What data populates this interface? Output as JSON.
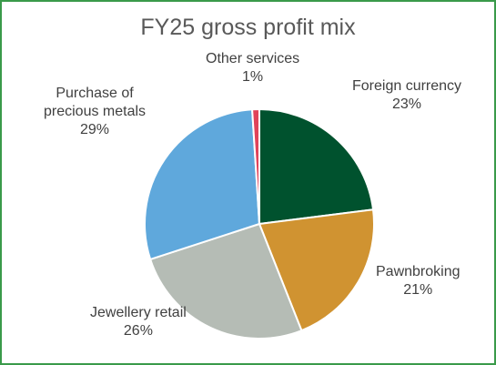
{
  "chart_data": {
    "type": "pie",
    "title": "FY25 gross profit mix",
    "start_angle_deg": 0,
    "direction": "clockwise",
    "slices": [
      {
        "label": "Foreign currency",
        "value": 23,
        "value_label": "23%",
        "color": "#00522e"
      },
      {
        "label": "Pawnbroking",
        "value": 21,
        "value_label": "21%",
        "color": "#d09331"
      },
      {
        "label": "Jewellery retail",
        "value": 26,
        "value_label": "26%",
        "color": "#b5bcb5"
      },
      {
        "label": "Purchase of\nprecious metals",
        "value": 29,
        "value_label": "29%",
        "color": "#5fa8dc"
      },
      {
        "label": "Other services",
        "value": 1,
        "value_label": "1%",
        "color": "#e0435a"
      }
    ],
    "legend": "none"
  }
}
